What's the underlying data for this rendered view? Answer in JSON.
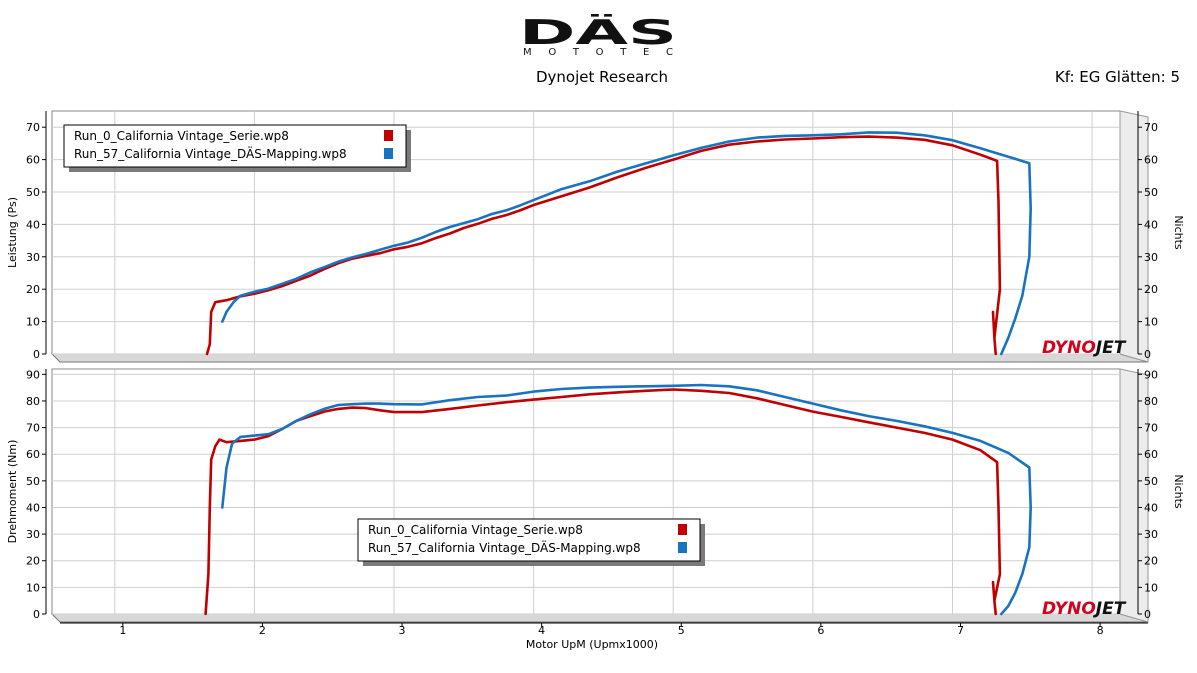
{
  "header": {
    "logo_text": "DÄS",
    "logo_subtext": "MOTOTEC",
    "title": "Dynojet Research",
    "smoothing": "Kf: EG Glätten: 5"
  },
  "colors": {
    "run0": "#c00000",
    "run57": "#1a73c0",
    "grid": "#cfcfcf",
    "frame": "#000000"
  },
  "watermark": {
    "part1": "DYNO",
    "part2": "JET"
  },
  "chart_data": [
    {
      "type": "line",
      "ylabel": "Leistung (Ps)",
      "right_label": "Nichts",
      "xlabel": "",
      "xlim": [
        0.55,
        8.2
      ],
      "ylim": [
        0,
        75
      ],
      "x_ticks": [
        1,
        2,
        3,
        4,
        5,
        6,
        7,
        8
      ],
      "y_ticks": [
        0,
        10,
        20,
        30,
        40,
        50,
        60,
        70
      ],
      "grid": true,
      "legend": "top-left",
      "series": [
        {
          "name": "Run_0_California Vintage_Serie.wp8",
          "color": "#c00000",
          "x": [
            1.66,
            1.68,
            1.69,
            1.72,
            1.8,
            1.9,
            2.0,
            2.1,
            2.2,
            2.3,
            2.4,
            2.5,
            2.6,
            2.7,
            2.8,
            2.9,
            3.0,
            3.1,
            3.2,
            3.3,
            3.4,
            3.5,
            3.6,
            3.7,
            3.8,
            3.9,
            4.0,
            4.2,
            4.4,
            4.6,
            4.8,
            5.0,
            5.2,
            5.4,
            5.6,
            5.8,
            6.0,
            6.2,
            6.4,
            6.6,
            6.8,
            7.0,
            7.2,
            7.32,
            7.33,
            7.34,
            7.3,
            7.29,
            7.3,
            7.31
          ],
          "y": [
            0,
            3,
            13,
            16,
            16.6,
            17.8,
            18.6,
            19.7,
            21,
            22.6,
            24.2,
            26.2,
            28,
            29.4,
            30.3,
            31.1,
            32.3,
            33.1,
            34.2,
            35.8,
            37.2,
            38.9,
            40.2,
            41.7,
            42.8,
            44.3,
            46,
            48.7,
            51.4,
            54.5,
            57.4,
            60,
            62.7,
            64.6,
            65.6,
            66.2,
            66.5,
            66.9,
            67.1,
            66.8,
            66.1,
            64.4,
            61.5,
            59.6,
            47,
            20,
            5,
            13,
            5,
            0
          ]
        },
        {
          "name": "Run_57_California Vintage_DÄS-Mapping.wp8",
          "color": "#1a73c0",
          "x": [
            1.77,
            1.8,
            1.85,
            1.9,
            2.0,
            2.1,
            2.2,
            2.3,
            2.4,
            2.5,
            2.6,
            2.7,
            2.8,
            2.9,
            3.0,
            3.1,
            3.2,
            3.3,
            3.4,
            3.5,
            3.6,
            3.7,
            3.8,
            3.9,
            4.0,
            4.2,
            4.4,
            4.6,
            4.8,
            5.0,
            5.2,
            5.4,
            5.6,
            5.8,
            6.0,
            6.2,
            6.4,
            6.6,
            6.8,
            7.0,
            7.2,
            7.4,
            7.55,
            7.56,
            7.55,
            7.5,
            7.45,
            7.4,
            7.35
          ],
          "y": [
            10,
            13,
            16,
            18,
            19.2,
            20.2,
            21.7,
            23.2,
            25.2,
            26.8,
            28.5,
            29.8,
            30.9,
            32.2,
            33.4,
            34.4,
            35.9,
            37.7,
            39.2,
            40.4,
            41.6,
            43.2,
            44.3,
            45.8,
            47.5,
            50.9,
            53.3,
            56.3,
            58.8,
            61.3,
            63.6,
            65.6,
            66.8,
            67.3,
            67.5,
            67.8,
            68.4,
            68.3,
            67.5,
            66,
            63.5,
            60.9,
            58.9,
            45,
            30,
            18,
            11,
            5,
            0
          ]
        }
      ]
    },
    {
      "type": "line",
      "ylabel": "Drehmoment (Nm)",
      "right_label": "Nichts",
      "xlabel": "Motor UpM (Upmx1000)",
      "xlim": [
        0.55,
        8.2
      ],
      "ylim": [
        0,
        92
      ],
      "x_ticks": [
        1,
        2,
        3,
        4,
        5,
        6,
        7,
        8
      ],
      "y_ticks": [
        0,
        10,
        20,
        30,
        40,
        50,
        60,
        70,
        80,
        90
      ],
      "grid": true,
      "legend": "center",
      "series": [
        {
          "name": "Run_0_California Vintage_Serie.wp8",
          "color": "#c00000",
          "x": [
            1.65,
            1.67,
            1.68,
            1.69,
            1.72,
            1.75,
            1.8,
            1.9,
            2.0,
            2.1,
            2.2,
            2.3,
            2.4,
            2.5,
            2.6,
            2.7,
            2.8,
            2.9,
            3.0,
            3.2,
            3.4,
            3.6,
            3.8,
            4.0,
            4.2,
            4.4,
            4.6,
            4.8,
            5.0,
            5.2,
            5.4,
            5.6,
            5.8,
            6.0,
            6.2,
            6.4,
            6.6,
            6.8,
            7.0,
            7.2,
            7.32,
            7.33,
            7.34,
            7.3,
            7.29,
            7.3,
            7.31
          ],
          "y": [
            0,
            15,
            40,
            58,
            63,
            65.5,
            64.5,
            65,
            65.5,
            66.8,
            69.5,
            72.5,
            74.3,
            76,
            77,
            77.5,
            77.3,
            76.5,
            75.8,
            75.8,
            77,
            78.3,
            79.5,
            80.5,
            81.5,
            82.5,
            83.2,
            83.8,
            84.3,
            83.8,
            83,
            81,
            78.5,
            76,
            74,
            72,
            70,
            68,
            65.5,
            61.5,
            57,
            40,
            15,
            5,
            12,
            5,
            0
          ]
        },
        {
          "name": "Run_57_California Vintage_DÄS-Mapping.wp8",
          "color": "#1a73c0",
          "x": [
            1.77,
            1.8,
            1.84,
            1.9,
            2.0,
            2.1,
            2.2,
            2.3,
            2.4,
            2.5,
            2.6,
            2.7,
            2.8,
            2.9,
            3.0,
            3.2,
            3.4,
            3.6,
            3.8,
            4.0,
            4.2,
            4.4,
            4.6,
            4.8,
            5.0,
            5.2,
            5.4,
            5.6,
            5.8,
            6.0,
            6.2,
            6.4,
            6.6,
            6.8,
            7.0,
            7.2,
            7.4,
            7.55,
            7.56,
            7.55,
            7.5,
            7.45,
            7.4,
            7.35
          ],
          "y": [
            40,
            55,
            64,
            66.5,
            67,
            67.5,
            69.5,
            72.5,
            75,
            77,
            78.5,
            78.8,
            79,
            79,
            78.8,
            78.7,
            80.3,
            81.5,
            82,
            83.5,
            84.5,
            85,
            85.3,
            85.5,
            85.7,
            86,
            85.5,
            84,
            81.5,
            79,
            76.5,
            74.3,
            72.5,
            70.5,
            68,
            65,
            60.5,
            55,
            40,
            25,
            15,
            8,
            3,
            0
          ]
        }
      ]
    }
  ]
}
